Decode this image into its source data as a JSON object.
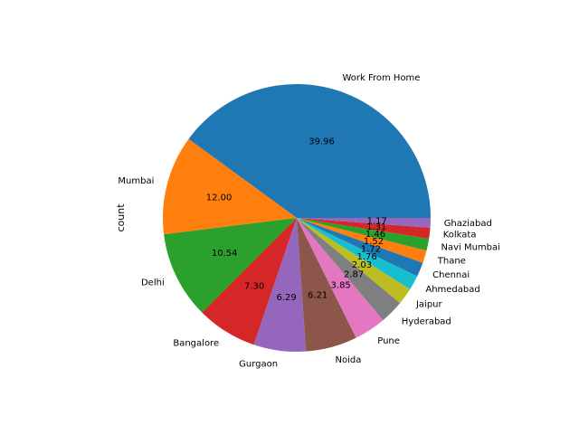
{
  "chart_data": {
    "type": "pie",
    "ylabel": "count",
    "categories": [
      "Work From Home",
      "Mumbai",
      "Delhi",
      "Bangalore",
      "Gurgaon",
      "Noida",
      "Pune",
      "Hyderabad",
      "Jaipur",
      "Ahmedabad",
      "Chennai",
      "Thane",
      "Navi Mumbai",
      "Kolkata",
      "Ghaziabad"
    ],
    "values": [
      39.96,
      12.0,
      10.54,
      7.3,
      6.29,
      6.21,
      3.85,
      2.87,
      2.03,
      1.76,
      1.72,
      1.52,
      1.46,
      1.31,
      1.17
    ],
    "value_labels": [
      "39.96",
      "12.00",
      "10.54",
      "7.30",
      "6.29",
      "6.21",
      "3.85",
      "2.87",
      "2.03",
      "1.76",
      "1.72",
      "1.52",
      "1.46",
      "1.31",
      "1.17"
    ],
    "start_angle_deg": 0,
    "direction": "counterclockwise",
    "colors": [
      "#1f77b4",
      "#ff7f0e",
      "#2ca02c",
      "#d62728",
      "#9467bd",
      "#8c564b",
      "#e377c2",
      "#7f7f7f",
      "#bcbd22",
      "#17becf",
      "#1f77b4",
      "#ff7f0e",
      "#2ca02c",
      "#d62728",
      "#9467bd"
    ]
  }
}
